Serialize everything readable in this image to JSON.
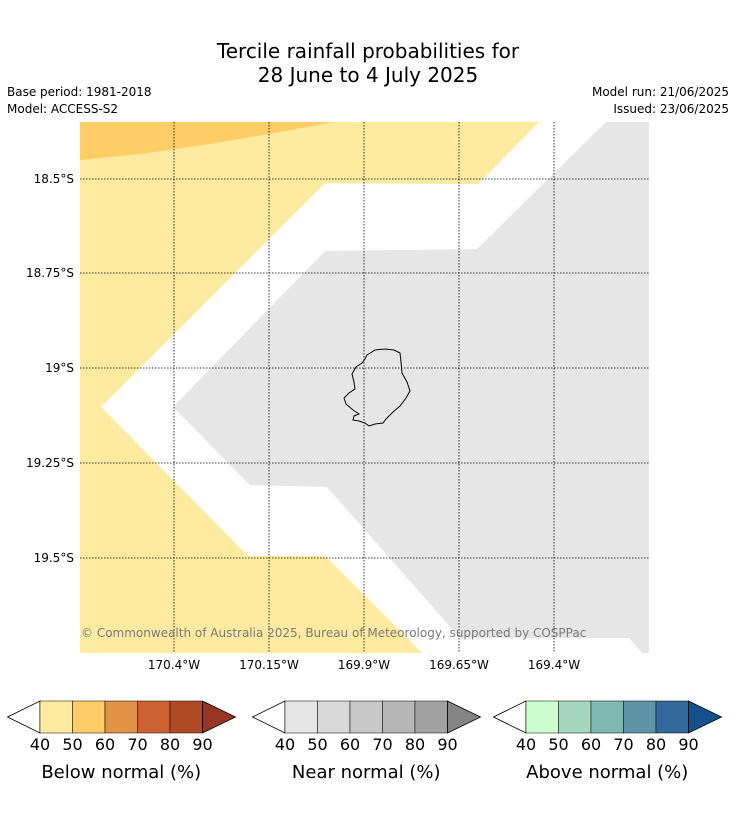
{
  "title": {
    "line1": "Tercile rainfall probabilities for",
    "line2": "28 June to 4 July 2025"
  },
  "meta": {
    "base_period": "Base period: 1981-2018",
    "model": "Model: ACCESS-S2",
    "model_run": "Model run: 21/06/2025",
    "issued": "Issued: 23/06/2025"
  },
  "map": {
    "lat_labels": [
      "18.5°S",
      "18.75°S",
      "19°S",
      "19.25°S",
      "19.5°S"
    ],
    "lon_labels": [
      "170.4°W",
      "170.15°W",
      "169.9°W",
      "169.65°W",
      "169.4°W"
    ],
    "copyright": "© Commonwealth of Australia 2025, Bureau of Meteorology, supported by COSPPac",
    "colors": {
      "below_40_50": "#ffeaa0",
      "below_50_60": "#ffcd66",
      "near_40_50": "#e6e6e6"
    }
  },
  "colorbars": [
    {
      "label": "Below normal (%)",
      "ticks": [
        "40",
        "50",
        "60",
        "70",
        "80",
        "90"
      ],
      "colors": [
        "#ffeaa0",
        "#ffcd66",
        "#e29346",
        "#cc6232",
        "#b04a26",
        "#963520"
      ]
    },
    {
      "label": "Near normal (%)",
      "ticks": [
        "40",
        "50",
        "60",
        "70",
        "80",
        "90"
      ],
      "colors": [
        "#e6e6e6",
        "#d8d8d8",
        "#c8c8c8",
        "#b6b6b6",
        "#a2a2a2",
        "#858585"
      ]
    },
    {
      "label": "Above normal (%)",
      "ticks": [
        "40",
        "50",
        "60",
        "70",
        "80",
        "90"
      ],
      "colors": [
        "#ccfdcc",
        "#a4d8be",
        "#80b8b2",
        "#5e94a6",
        "#326b9b",
        "#14508c"
      ]
    }
  ]
}
